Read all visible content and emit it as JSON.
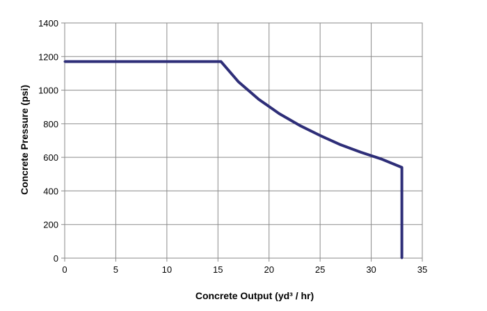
{
  "chart_data": {
    "type": "line",
    "title": "",
    "xlabel": "Concrete Output (yd³ / hr)",
    "ylabel": "Concrete Pressure (psi)",
    "xlim": [
      0,
      35
    ],
    "ylim": [
      0,
      1400
    ],
    "xticks": [
      0,
      5,
      10,
      15,
      20,
      25,
      30,
      35
    ],
    "yticks": [
      0,
      200,
      400,
      600,
      800,
      1000,
      1200,
      1400
    ],
    "grid": true,
    "legend": "none",
    "series": [
      {
        "color": "#2e2e78",
        "x": [
          0,
          15.3,
          17,
          19,
          21,
          23,
          25,
          27,
          29,
          31,
          33,
          33
        ],
        "y": [
          1170,
          1170,
          1050,
          945,
          860,
          790,
          730,
          675,
          630,
          590,
          540,
          0
        ]
      }
    ]
  }
}
